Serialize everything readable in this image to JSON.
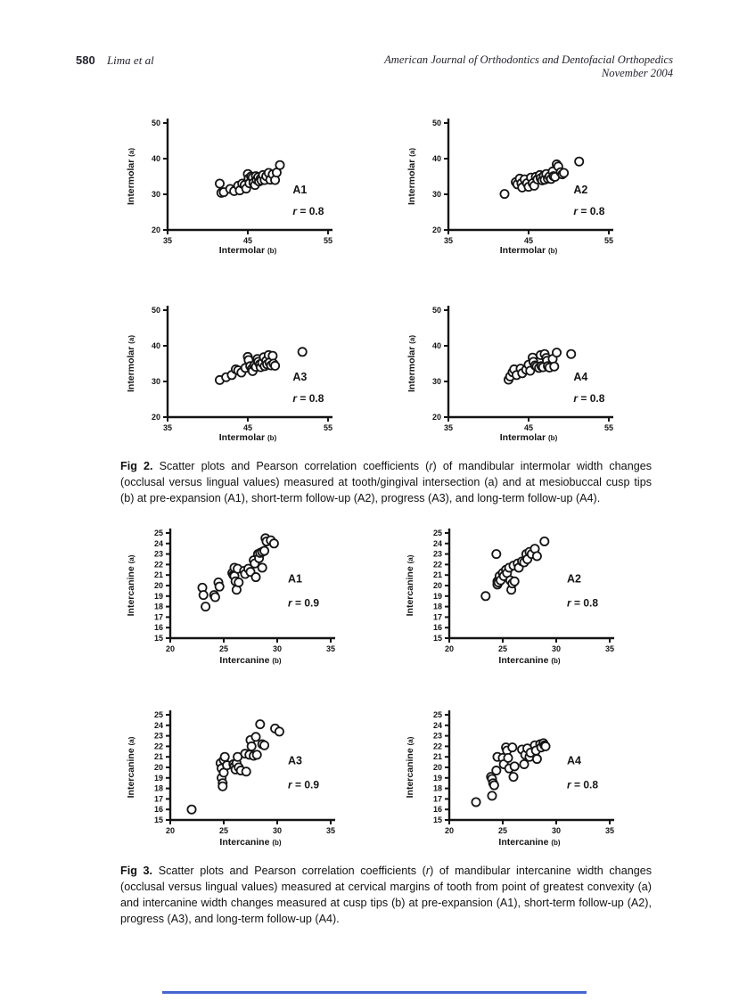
{
  "page_header": {
    "page_number": "580",
    "authors": "Lima et al",
    "journal": "American Journal of Orthodontics and Dentofacial Orthopedics",
    "issue_date": "November 2004"
  },
  "figure2": {
    "caption_parts": [
      {
        "t": "Fig 2.",
        "bold": true
      },
      {
        "t": " Scatter plots and Pearson correlation coefficients ("
      },
      {
        "t": "r",
        "italic": true
      },
      {
        "t": ") of mandibular intermolar width changes (occlusal versus lingual values) measured at tooth/gingival intersection (a) and at mesiobuccal cusp tips (b) at pre-expansion (A1), short-term follow-up (A2), progress (A3), and long-term follow-up (A4)."
      }
    ]
  },
  "figure3": {
    "caption_parts": [
      {
        "t": "Fig 3.",
        "bold": true
      },
      {
        "t": " Scatter plots and Pearson correlation coefficients ("
      },
      {
        "t": "r",
        "italic": true
      },
      {
        "t": ") of mandibular intercanine width changes (occlusal versus lingual values) measured at cervical margins of tooth from point of greatest convexity (a) and intercanine width changes measured at cusp tips (b) at pre-expansion (A1), short-term follow-up (A2), progress (A3), and long-term follow-up (A4)."
      }
    ]
  },
  "footer": {
    "accent_rule_color": "#4565cf"
  },
  "chart_data": [
    {
      "id": "fig2-a1",
      "group": "fig2",
      "type": "scatter",
      "panel_label": "A1",
      "r_text": "r = 0.8",
      "xlabel": "Intermolar",
      "xlabel_sub": "(b)",
      "ylabel": "Intermolar",
      "ylabel_sub": "(a)",
      "xlim": [
        35,
        55
      ],
      "ylim": [
        20,
        50
      ],
      "xticks": [
        35,
        45,
        55
      ],
      "yticks": [
        20,
        30,
        40,
        50
      ],
      "points": [
        [
          41.5,
          33
        ],
        [
          41.7,
          30.4
        ],
        [
          42.0,
          30.6
        ],
        [
          42.8,
          31.5
        ],
        [
          43.3,
          30.9
        ],
        [
          43.8,
          32.4
        ],
        [
          44.0,
          31.1
        ],
        [
          44.3,
          33.0
        ],
        [
          44.6,
          32.6
        ],
        [
          44.8,
          31.6
        ],
        [
          45.0,
          35.7
        ],
        [
          45.1,
          34.4
        ],
        [
          45.2,
          33.1
        ],
        [
          45.4,
          35.0
        ],
        [
          45.6,
          34.7
        ],
        [
          45.7,
          33.2
        ],
        [
          45.9,
          32.6
        ],
        [
          46.0,
          35.1
        ],
        [
          46.1,
          34.1
        ],
        [
          46.3,
          34.8
        ],
        [
          46.4,
          33.6
        ],
        [
          46.6,
          34.4
        ],
        [
          46.7,
          33.9
        ],
        [
          46.9,
          35.4
        ],
        [
          47.1,
          34.0
        ],
        [
          47.3,
          35.1
        ],
        [
          47.6,
          36.0
        ],
        [
          47.8,
          34.1
        ],
        [
          48.1,
          35.6
        ],
        [
          48.4,
          34.0
        ],
        [
          48.6,
          36.1
        ],
        [
          49.0,
          38.2
        ]
      ]
    },
    {
      "id": "fig2-a2",
      "group": "fig2",
      "type": "scatter",
      "panel_label": "A2",
      "r_text": "r = 0.8",
      "xlabel": "Intermolar",
      "xlabel_sub": "(b)",
      "ylabel": "Intermolar",
      "ylabel_sub": "(a)",
      "xlim": [
        35,
        55
      ],
      "ylim": [
        20,
        50
      ],
      "xticks": [
        35,
        45,
        55
      ],
      "yticks": [
        20,
        30,
        40,
        50
      ],
      "points": [
        [
          42.0,
          30.1
        ],
        [
          43.4,
          33.4
        ],
        [
          43.6,
          32.8
        ],
        [
          43.9,
          34.4
        ],
        [
          44.1,
          33.1
        ],
        [
          44.2,
          31.9
        ],
        [
          44.5,
          34.2
        ],
        [
          44.8,
          33.1
        ],
        [
          45.0,
          32.1
        ],
        [
          45.3,
          34.7
        ],
        [
          45.5,
          33.1
        ],
        [
          45.7,
          32.4
        ],
        [
          45.9,
          34.9
        ],
        [
          46.1,
          34.2
        ],
        [
          46.4,
          35.4
        ],
        [
          46.5,
          34.5
        ],
        [
          46.7,
          33.9
        ],
        [
          46.9,
          35.2
        ],
        [
          47.0,
          34.1
        ],
        [
          47.2,
          35.7
        ],
        [
          47.4,
          34.4
        ],
        [
          47.6,
          35.0
        ],
        [
          47.8,
          34.3
        ],
        [
          48.0,
          36.4
        ],
        [
          48.1,
          35.1
        ],
        [
          48.3,
          34.9
        ],
        [
          48.5,
          38.4
        ],
        [
          48.7,
          37.8
        ],
        [
          49.0,
          36.2
        ],
        [
          49.2,
          35.6
        ],
        [
          49.4,
          36.0
        ],
        [
          51.3,
          39.2
        ]
      ]
    },
    {
      "id": "fig2-a3",
      "group": "fig2",
      "type": "scatter",
      "panel_label": "A3",
      "r_text": "r = 0.8",
      "xlabel": "Intermolar",
      "xlabel_sub": "(b)",
      "ylabel": "Intermolar",
      "ylabel_sub": "(a)",
      "xlim": [
        35,
        55
      ],
      "ylim": [
        20,
        50
      ],
      "xticks": [
        35,
        45,
        55
      ],
      "yticks": [
        20,
        30,
        40,
        50
      ],
      "points": [
        [
          41.5,
          30.4
        ],
        [
          42.3,
          31.2
        ],
        [
          43.0,
          31.8
        ],
        [
          43.5,
          33.4
        ],
        [
          43.8,
          33.1
        ],
        [
          44.2,
          32.5
        ],
        [
          44.7,
          33.8
        ],
        [
          45.0,
          36.9
        ],
        [
          45.1,
          36.0
        ],
        [
          45.3,
          34.3
        ],
        [
          45.5,
          33.5
        ],
        [
          45.6,
          32.9
        ],
        [
          45.8,
          34.5
        ],
        [
          46.0,
          34.1
        ],
        [
          46.2,
          36.3
        ],
        [
          46.3,
          35.5
        ],
        [
          46.5,
          34.8
        ],
        [
          46.6,
          34.0
        ],
        [
          46.8,
          35.2
        ],
        [
          47.0,
          36.8
        ],
        [
          47.1,
          34.3
        ],
        [
          47.3,
          35.8
        ],
        [
          47.4,
          34.8
        ],
        [
          47.6,
          37.4
        ],
        [
          47.7,
          35.3
        ],
        [
          47.9,
          34.5
        ],
        [
          48.1,
          37.2
        ],
        [
          48.2,
          35.0
        ],
        [
          48.4,
          34.4
        ],
        [
          51.8,
          38.3
        ]
      ]
    },
    {
      "id": "fig2-a4",
      "group": "fig2",
      "type": "scatter",
      "panel_label": "A4",
      "r_text": "r = 0.8",
      "xlabel": "Intermolar",
      "xlabel_sub": "(b)",
      "ylabel": "Intermolar",
      "ylabel_sub": "(a)",
      "xlim": [
        35,
        55
      ],
      "ylim": [
        20,
        50
      ],
      "xticks": [
        35,
        45,
        55
      ],
      "yticks": [
        20,
        30,
        40,
        50
      ],
      "points": [
        [
          42.5,
          30.5
        ],
        [
          42.7,
          31.4
        ],
        [
          43.0,
          32.6
        ],
        [
          43.2,
          33.4
        ],
        [
          43.5,
          31.8
        ],
        [
          44.0,
          33.6
        ],
        [
          44.2,
          32.3
        ],
        [
          44.7,
          33.3
        ],
        [
          45.0,
          34.7
        ],
        [
          45.2,
          33.0
        ],
        [
          45.5,
          36.7
        ],
        [
          45.6,
          35.5
        ],
        [
          45.8,
          34.5
        ],
        [
          46.0,
          34.2
        ],
        [
          46.3,
          33.8
        ],
        [
          46.5,
          37.4
        ],
        [
          46.6,
          34.3
        ],
        [
          46.8,
          34.0
        ],
        [
          47.0,
          37.7
        ],
        [
          47.2,
          36.6
        ],
        [
          47.3,
          35.8
        ],
        [
          47.4,
          34.3
        ],
        [
          47.6,
          33.9
        ],
        [
          48.0,
          36.3
        ],
        [
          48.2,
          34.2
        ],
        [
          48.5,
          38.1
        ],
        [
          50.3,
          37.7
        ]
      ]
    },
    {
      "id": "fig3-a1",
      "group": "fig3",
      "type": "scatter",
      "panel_label": "A1",
      "r_text": "r = 0.9",
      "xlabel": "Intercanine",
      "xlabel_sub": "(b)",
      "ylabel": "Intercanine",
      "ylabel_sub": "(a)",
      "xlim": [
        20,
        35
      ],
      "ylim": [
        15,
        25
      ],
      "xticks": [
        20,
        25,
        30,
        35
      ],
      "yticks": [
        15,
        16,
        17,
        18,
        19,
        20,
        21,
        22,
        23,
        24,
        25
      ],
      "points": [
        [
          23.0,
          19.8
        ],
        [
          23.1,
          19.1
        ],
        [
          23.3,
          18.0
        ],
        [
          24.1,
          19.1
        ],
        [
          24.2,
          18.9
        ],
        [
          24.5,
          20.3
        ],
        [
          24.6,
          19.9
        ],
        [
          25.8,
          21.2
        ],
        [
          25.9,
          21.0
        ],
        [
          26.0,
          21.7
        ],
        [
          26.0,
          20.9
        ],
        [
          26.1,
          20.4
        ],
        [
          26.2,
          19.6
        ],
        [
          26.3,
          21.6
        ],
        [
          26.4,
          20.3
        ],
        [
          26.9,
          21.4
        ],
        [
          27.0,
          21.1
        ],
        [
          27.3,
          21.6
        ],
        [
          27.5,
          21.3
        ],
        [
          27.8,
          22.4
        ],
        [
          27.9,
          22.1
        ],
        [
          28.0,
          20.8
        ],
        [
          28.2,
          23.0
        ],
        [
          28.3,
          22.6
        ],
        [
          28.4,
          23.1
        ],
        [
          28.6,
          23.2
        ],
        [
          28.6,
          21.7
        ],
        [
          28.8,
          23.3
        ],
        [
          28.9,
          24.5
        ],
        [
          29.0,
          24.2
        ],
        [
          29.4,
          24.3
        ],
        [
          29.7,
          24.0
        ]
      ]
    },
    {
      "id": "fig3-a2",
      "group": "fig3",
      "type": "scatter",
      "panel_label": "A2",
      "r_text": "r = 0.8",
      "xlabel": "Intercanine",
      "xlabel_sub": "(b)",
      "ylabel": "Intercanine",
      "ylabel_sub": "(a)",
      "xlim": [
        20,
        35
      ],
      "ylim": [
        15,
        25
      ],
      "xticks": [
        20,
        25,
        30,
        35
      ],
      "yticks": [
        15,
        16,
        17,
        18,
        19,
        20,
        21,
        22,
        23,
        24,
        25
      ],
      "points": [
        [
          23.4,
          19.0
        ],
        [
          24.4,
          23.0
        ],
        [
          24.5,
          20.4
        ],
        [
          24.5,
          20.1
        ],
        [
          24.6,
          20.3
        ],
        [
          24.7,
          20.9
        ],
        [
          24.8,
          20.5
        ],
        [
          25.0,
          21.2
        ],
        [
          25.1,
          20.9
        ],
        [
          25.3,
          21.5
        ],
        [
          25.4,
          21.2
        ],
        [
          25.6,
          21.7
        ],
        [
          25.7,
          20.5
        ],
        [
          25.8,
          19.6
        ],
        [
          25.9,
          20.2
        ],
        [
          26.0,
          21.9
        ],
        [
          26.1,
          20.4
        ],
        [
          26.4,
          22.1
        ],
        [
          26.5,
          21.7
        ],
        [
          26.8,
          22.3
        ],
        [
          27.0,
          22.2
        ],
        [
          27.2,
          23.0
        ],
        [
          27.3,
          22.5
        ],
        [
          27.5,
          23.2
        ],
        [
          27.7,
          23.0
        ],
        [
          28.0,
          23.5
        ],
        [
          28.2,
          22.8
        ],
        [
          28.9,
          24.2
        ]
      ]
    },
    {
      "id": "fig3-a3",
      "group": "fig3",
      "type": "scatter",
      "panel_label": "A3",
      "r_text": "r = 0.9",
      "xlabel": "Intercanine",
      "xlabel_sub": "(b)",
      "ylabel": "Intercanine",
      "ylabel_sub": "(a)",
      "xlim": [
        20,
        35
      ],
      "ylim": [
        15,
        25
      ],
      "xticks": [
        20,
        25,
        30,
        35
      ],
      "yticks": [
        15,
        16,
        17,
        18,
        19,
        20,
        21,
        22,
        23,
        24,
        25
      ],
      "points": [
        [
          22.0,
          16.0
        ],
        [
          24.7,
          20.4
        ],
        [
          24.8,
          19.9
        ],
        [
          24.8,
          19.0
        ],
        [
          24.9,
          18.5
        ],
        [
          24.9,
          18.2
        ],
        [
          25.0,
          20.7
        ],
        [
          25.0,
          19.5
        ],
        [
          25.1,
          21.0
        ],
        [
          25.3,
          20.2
        ],
        [
          25.9,
          20.3
        ],
        [
          26.0,
          20.1
        ],
        [
          26.1,
          19.8
        ],
        [
          26.2,
          20.4
        ],
        [
          26.3,
          21.0
        ],
        [
          26.4,
          20.0
        ],
        [
          26.6,
          19.7
        ],
        [
          27.0,
          21.3
        ],
        [
          27.1,
          19.6
        ],
        [
          27.4,
          21.2
        ],
        [
          27.5,
          22.6
        ],
        [
          27.6,
          22.0
        ],
        [
          27.8,
          21.1
        ],
        [
          28.0,
          22.9
        ],
        [
          28.1,
          21.2
        ],
        [
          28.4,
          24.1
        ],
        [
          28.6,
          22.2
        ],
        [
          28.8,
          22.1
        ],
        [
          29.8,
          23.7
        ],
        [
          30.2,
          23.4
        ]
      ]
    },
    {
      "id": "fig3-a4",
      "group": "fig3",
      "type": "scatter",
      "panel_label": "A4",
      "r_text": "r = 0.8",
      "xlabel": "Intercanine",
      "xlabel_sub": "(b)",
      "ylabel": "Intercanine",
      "ylabel_sub": "(a)",
      "xlim": [
        20,
        35
      ],
      "ylim": [
        15,
        25
      ],
      "xticks": [
        20,
        25,
        30,
        35
      ],
      "yticks": [
        15,
        16,
        17,
        18,
        19,
        20,
        21,
        22,
        23,
        24,
        25
      ],
      "points": [
        [
          22.5,
          16.7
        ],
        [
          23.9,
          19.1
        ],
        [
          24.0,
          18.9
        ],
        [
          24.0,
          17.3
        ],
        [
          24.1,
          18.5
        ],
        [
          24.2,
          18.3
        ],
        [
          24.4,
          19.7
        ],
        [
          24.5,
          21.0
        ],
        [
          25.0,
          20.9
        ],
        [
          25.1,
          20.3
        ],
        [
          25.3,
          21.9
        ],
        [
          25.4,
          21.6
        ],
        [
          25.5,
          20.9
        ],
        [
          25.6,
          19.9
        ],
        [
          25.9,
          21.9
        ],
        [
          26.0,
          19.1
        ],
        [
          26.1,
          20.1
        ],
        [
          26.8,
          21.7
        ],
        [
          27.0,
          20.3
        ],
        [
          27.1,
          21.2
        ],
        [
          27.3,
          21.8
        ],
        [
          27.5,
          21.0
        ],
        [
          27.6,
          21.4
        ],
        [
          28.0,
          22.1
        ],
        [
          28.1,
          21.6
        ],
        [
          28.2,
          20.8
        ],
        [
          28.5,
          22.2
        ],
        [
          28.6,
          21.9
        ],
        [
          28.8,
          22.3
        ],
        [
          28.9,
          22.1
        ],
        [
          29.0,
          22.0
        ]
      ]
    }
  ]
}
